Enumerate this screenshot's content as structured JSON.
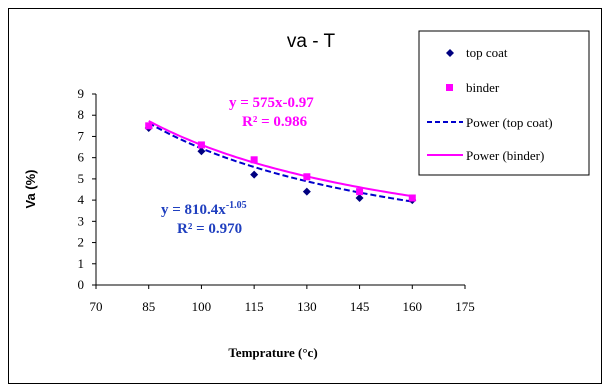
{
  "chart_data": {
    "type": "scatter",
    "title": "va - T",
    "xlabel": "Temprature (°c)",
    "ylabel": "Va (%)",
    "xlim": [
      70,
      175
    ],
    "ylim": [
      0,
      9
    ],
    "x_ticks": [
      "70",
      "85",
      "100",
      "115",
      "130",
      "145",
      "160",
      "175"
    ],
    "y_ticks": [
      "0",
      "1",
      "2",
      "3",
      "4",
      "5",
      "6",
      "7",
      "8",
      "9"
    ],
    "series": [
      {
        "name": "top coat",
        "marker": "diamond",
        "color": "#000080",
        "x": [
          85,
          100,
          115,
          130,
          145,
          160
        ],
        "y": [
          7.4,
          6.3,
          5.2,
          4.4,
          4.1,
          4.0
        ]
      },
      {
        "name": "binder",
        "marker": "square",
        "color": "#ff00ff",
        "x": [
          85,
          100,
          115,
          130,
          145,
          160
        ],
        "y": [
          7.5,
          6.6,
          5.9,
          5.1,
          4.4,
          4.1
        ]
      }
    ],
    "trendlines": [
      {
        "name": "Power (top coat)",
        "style": "dashed",
        "color": "#0000cc",
        "a": 810.4,
        "b": -1.05
      },
      {
        "name": "Power (binder)",
        "style": "solid",
        "color": "#ff00ff",
        "a": 575,
        "b": -0.97
      }
    ],
    "annotations": {
      "binder_equation": "y = 575x-0.97",
      "binder_r2": "R² = 0.986",
      "topcoat_equation_base": "y = 810.4x",
      "topcoat_equation_exp": "-1.05",
      "topcoat_r2": "R² = 0.970"
    },
    "legend": {
      "position": "top-right",
      "entries": [
        "top coat",
        "binder",
        "Power (top coat)",
        "Power (binder)"
      ]
    }
  }
}
